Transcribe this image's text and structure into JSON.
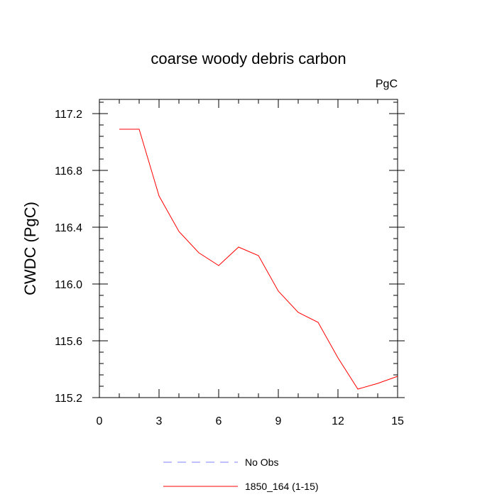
{
  "chart_data": {
    "type": "line",
    "title": "coarse woody debris carbon",
    "units_label": "PgC",
    "ylabel": "CWDC  (PgC)",
    "xlabel": "",
    "xlim": [
      0,
      15
    ],
    "ylim": [
      115.2,
      117.3
    ],
    "x_ticks": [
      0,
      3,
      6,
      9,
      12,
      15
    ],
    "x_tick_labels": [
      "0",
      "3",
      "6",
      "9",
      "12",
      "15"
    ],
    "y_ticks": [
      115.2,
      115.6,
      116.0,
      116.4,
      116.8,
      117.2
    ],
    "y_tick_labels": [
      "115.2",
      "115.6",
      "116.0",
      "116.4",
      "116.8",
      "117.2"
    ],
    "grid": false,
    "legend_position": "bottom",
    "legend": [
      {
        "name": "No Obs",
        "color": "#8080ff",
        "dash": true
      },
      {
        "name": "1850_164 (1-15)",
        "color": "#ff0000",
        "dash": false
      }
    ],
    "series": [
      {
        "name": "1850_164 (1-15)",
        "color": "#ff0000",
        "x": [
          1,
          2,
          3,
          4,
          5,
          6,
          7,
          8,
          9,
          10,
          11,
          12,
          13,
          14,
          15
        ],
        "y": [
          117.09,
          117.09,
          116.62,
          116.37,
          116.22,
          116.13,
          116.26,
          116.2,
          115.95,
          115.8,
          115.73,
          115.48,
          115.26,
          115.3,
          115.35
        ]
      }
    ]
  }
}
